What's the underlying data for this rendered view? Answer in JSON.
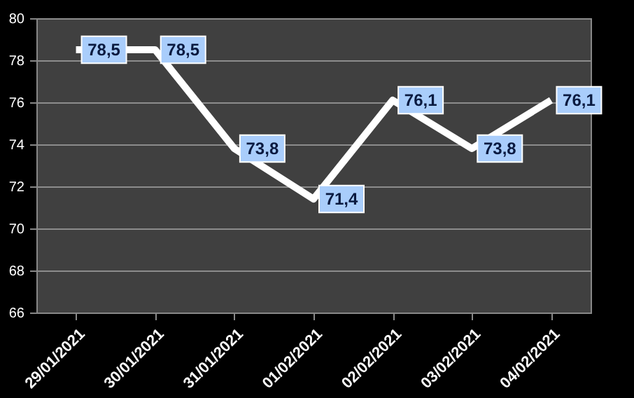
{
  "chart_data": {
    "type": "line",
    "categories": [
      "29/01/2021",
      "30/01/2021",
      "31/01/2021",
      "01/02/2021",
      "02/02/2021",
      "03/02/2021",
      "04/02/2021"
    ],
    "series": [
      {
        "color": "#ffffff",
        "values": [
          78.5,
          78.5,
          73.8,
          71.4,
          76.1,
          73.8,
          76.1
        ],
        "value_labels": [
          "78,5",
          "78,5",
          "73,8",
          "71,4",
          "76,1",
          "73,8",
          "76,1"
        ]
      }
    ],
    "ylim": [
      66,
      80
    ],
    "yticks": [
      66,
      68,
      70,
      72,
      74,
      76,
      78,
      80
    ],
    "grid": "y",
    "marker": "none",
    "line_style": "solid"
  }
}
